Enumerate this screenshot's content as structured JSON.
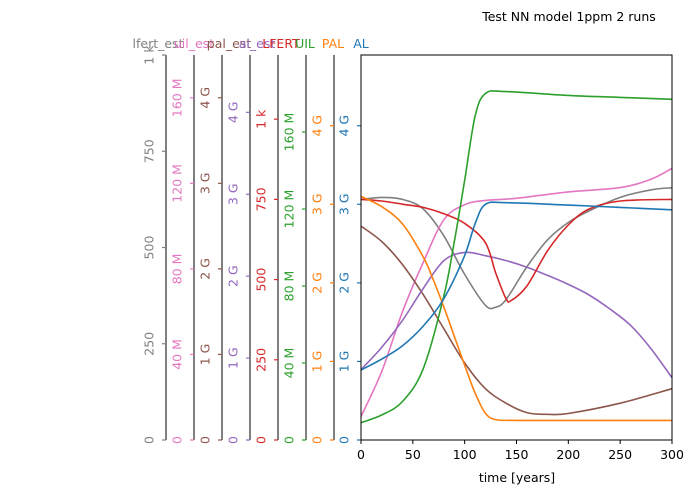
{
  "chart_data": {
    "type": "line",
    "title": "Test NN model 1ppm 2 runs",
    "xlabel": "time [years]",
    "xlim": [
      0,
      300
    ],
    "xticks": [
      "0",
      "50",
      "100",
      "150",
      "200",
      "250",
      "300"
    ],
    "grid": false,
    "axes": [
      {
        "key": "lfert",
        "label": "lfert_est",
        "color": "#7f7f7f",
        "ticks": [
          "0",
          "250",
          "500",
          "750",
          "1 k"
        ],
        "max": 1000,
        "scale": 1
      },
      {
        "key": "ui_est",
        "label": "uil_est",
        "color": "#e377c2",
        "ticks": [
          "0",
          "40 M",
          "80 M",
          "120 M",
          "160 M"
        ],
        "max": 180000000,
        "scale": 1000000
      },
      {
        "key": "pal_est",
        "label": "pal_est",
        "color": "#8c564b",
        "ticks": [
          "0",
          "1 G",
          "2 G",
          "3 G",
          "4 G"
        ],
        "max": 4500000000,
        "scale": 1000000000
      },
      {
        "key": "al_est",
        "label": "al_est",
        "color": "#9467bd",
        "ticks": [
          "0",
          "1 G",
          "2 G",
          "3 G",
          "4 G"
        ],
        "max": 4700000000,
        "scale": 1000000000
      },
      {
        "key": "lfert_true",
        "label": "LFERT",
        "color": "#d62728",
        "ticks": [
          "0",
          "250",
          "500",
          "750",
          "1 k"
        ],
        "max": 1200,
        "scale": 1
      },
      {
        "key": "uil",
        "label": "UIL",
        "color": "#2ca02c",
        "ticks": [
          "0",
          "40 M",
          "80 M",
          "120 M",
          "160 M"
        ],
        "max": 200000000,
        "scale": 1000000
      },
      {
        "key": "pal",
        "label": "PAL",
        "color": "#ff7f0e",
        "ticks": [
          "0",
          "1 G",
          "2 G",
          "3 G",
          "4 G"
        ],
        "max": 4900000000,
        "scale": 1000000000
      },
      {
        "key": "al",
        "label": "AL",
        "color": "#1f77b4",
        "ticks": [
          "0",
          "1 G",
          "2 G",
          "3 G",
          "4 G"
        ],
        "max": 4900000000,
        "scale": 1000000000
      }
    ],
    "series": [
      {
        "name": "lfert_est",
        "axis": "lfert",
        "color": "#7f7f7f",
        "x": [
          0,
          20,
          40,
          60,
          80,
          100,
          120,
          130,
          140,
          160,
          180,
          200,
          220,
          250,
          280,
          300
        ],
        "y": [
          625,
          630,
          625,
          600,
          530,
          430,
          350,
          345,
          365,
          450,
          520,
          565,
          595,
          630,
          650,
          655
        ]
      },
      {
        "name": "uil_est",
        "axis": "ui_est",
        "color": "#e377c2",
        "x": [
          0,
          20,
          40,
          60,
          80,
          100,
          120,
          150,
          200,
          250,
          280,
          300
        ],
        "y": [
          11000000,
          32000000,
          60000000,
          83000000,
          103000000,
          110000000,
          112000000,
          113000000,
          116000000,
          118000000,
          122000000,
          127000000
        ]
      },
      {
        "name": "pal_est",
        "axis": "pal_est",
        "color": "#8c564b",
        "x": [
          0,
          20,
          40,
          60,
          80,
          100,
          120,
          140,
          160,
          180,
          200,
          250,
          300
        ],
        "y": [
          2500000000,
          2320000000,
          2050000000,
          1700000000,
          1300000000,
          900000000,
          600000000,
          430000000,
          320000000,
          300000000,
          310000000,
          430000000,
          600000000
        ]
      },
      {
        "name": "al_est",
        "axis": "al_est",
        "color": "#9467bd",
        "x": [
          0,
          20,
          40,
          60,
          80,
          100,
          120,
          140,
          160,
          180,
          200,
          220,
          240,
          260,
          280,
          300
        ],
        "y": [
          860000000,
          1130000000,
          1460000000,
          1850000000,
          2190000000,
          2290000000,
          2250000000,
          2190000000,
          2110000000,
          2010000000,
          1900000000,
          1770000000,
          1600000000,
          1400000000,
          1110000000,
          760000000
        ]
      },
      {
        "name": "LFERT",
        "axis": "lfert_true",
        "color": "#d62728",
        "x": [
          0,
          20,
          40,
          60,
          80,
          100,
          120,
          130,
          140,
          145,
          160,
          180,
          200,
          220,
          250,
          300
        ],
        "y": [
          750,
          745,
          735,
          725,
          705,
          675,
          615,
          520,
          440,
          435,
          480,
          590,
          670,
          720,
          745,
          750
        ]
      },
      {
        "name": "UIL",
        "axis": "uil",
        "color": "#2ca02c",
        "x": [
          0,
          20,
          40,
          60,
          80,
          90,
          100,
          110,
          120,
          140,
          200,
          250,
          300
        ],
        "y": [
          9000000,
          13000000,
          20000000,
          37000000,
          75000000,
          103000000,
          135000000,
          168000000,
          180000000,
          181000000,
          179000000,
          178000000,
          177000000
        ]
      },
      {
        "name": "PAL",
        "axis": "pal",
        "color": "#ff7f0e",
        "x": [
          0,
          20,
          40,
          60,
          70,
          80,
          90,
          100,
          110,
          120,
          130,
          150,
          200,
          300
        ],
        "y": [
          3100000000,
          2970000000,
          2750000000,
          2330000000,
          2030000000,
          1690000000,
          1320000000,
          950000000,
          600000000,
          340000000,
          260000000,
          250000000,
          250000000,
          250000000
        ]
      },
      {
        "name": "AL",
        "axis": "al",
        "color": "#1f77b4",
        "x": [
          0,
          20,
          40,
          60,
          80,
          100,
          110,
          120,
          140,
          200,
          250,
          300
        ],
        "y": [
          890000000,
          1030000000,
          1200000000,
          1450000000,
          1800000000,
          2350000000,
          2750000000,
          3000000000,
          3020000000,
          2990000000,
          2960000000,
          2930000000
        ]
      }
    ]
  }
}
